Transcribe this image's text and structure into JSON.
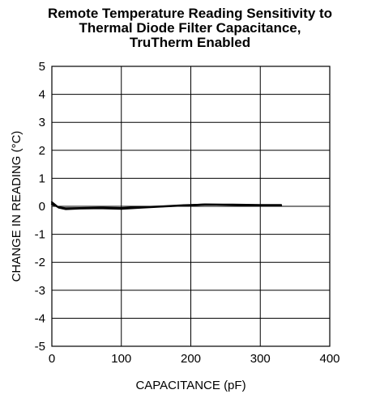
{
  "chart_data": {
    "type": "line",
    "title_lines": [
      "Remote Temperature Reading Sensitivity to",
      "Thermal Diode Filter Capacitance,",
      "TruTherm Enabled"
    ],
    "xlabel": "CAPACITANCE (pF)",
    "ylabel": "CHANGE IN READING (°C)",
    "xlim": [
      0,
      400
    ],
    "ylim": [
      -5,
      5
    ],
    "x_ticks": [
      0,
      100,
      200,
      300,
      400
    ],
    "y_ticks": [
      5,
      4,
      3,
      2,
      1,
      0,
      -1,
      -2,
      -3,
      -4,
      -5
    ],
    "grid": true,
    "legend": "none",
    "series": [
      {
        "color": "#000000",
        "points": [
          [
            0,
            0.15
          ],
          [
            5,
            0.05
          ],
          [
            10,
            -0.05
          ],
          [
            20,
            -0.1
          ],
          [
            40,
            -0.08
          ],
          [
            70,
            -0.07
          ],
          [
            100,
            -0.09
          ],
          [
            130,
            -0.05
          ],
          [
            160,
            -0.01
          ],
          [
            190,
            0.03
          ],
          [
            220,
            0.07
          ],
          [
            260,
            0.05
          ],
          [
            300,
            0.04
          ],
          [
            330,
            0.03
          ]
        ]
      },
      {
        "color": "#000000",
        "points": [
          [
            0,
            0.08
          ],
          [
            5,
            0.02
          ],
          [
            10,
            -0.04
          ],
          [
            20,
            -0.07
          ],
          [
            40,
            -0.06
          ],
          [
            70,
            -0.05
          ],
          [
            100,
            -0.06
          ],
          [
            130,
            -0.03
          ],
          [
            160,
            0.0
          ],
          [
            190,
            0.04
          ],
          [
            220,
            0.06
          ],
          [
            260,
            0.06
          ],
          [
            300,
            0.05
          ],
          [
            330,
            0.05
          ]
        ]
      }
    ]
  }
}
